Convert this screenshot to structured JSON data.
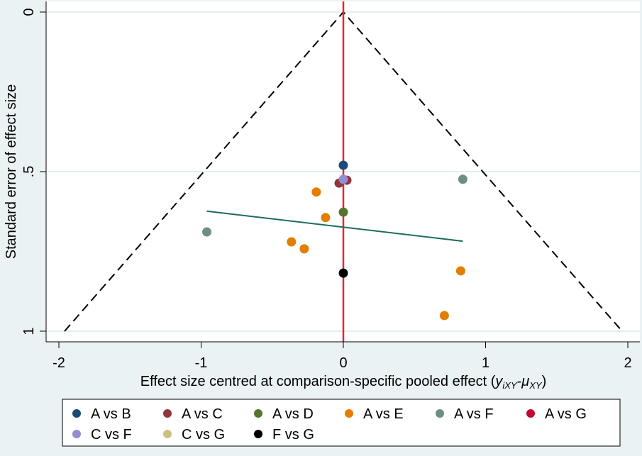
{
  "chart_data": {
    "type": "scatter",
    "title": "",
    "xlabel": "Effect size centred at comparison-specific pooled effect (",
    "xlabel_math": {
      "y": "y",
      "y_sub": "iXY",
      "dash": "-",
      "mu": "μ",
      "mu_sub": "XY",
      "close": ")"
    },
    "ylabel": "Standard error of effect size",
    "xlim": [
      -2,
      2
    ],
    "ylim": [
      0,
      1
    ],
    "y_reversed": true,
    "x_ticks": [
      -2,
      -1,
      0,
      1,
      2
    ],
    "x_tick_labels": [
      "-2",
      "-1",
      "0",
      "1",
      "2"
    ],
    "y_ticks": [
      0,
      0.5,
      1
    ],
    "y_tick_labels": [
      "0",
      ".5",
      "1"
    ],
    "grid": "horizontal",
    "legend_placement": "bottom",
    "funnel": {
      "apex": [
        0,
        0
      ],
      "base_se": 1,
      "slope": 1.96
    },
    "null_line_x": 0,
    "regression_line": {
      "x": [
        -0.96,
        0.84
      ],
      "y": [
        0.624,
        0.718
      ],
      "color": "#1f6b5f"
    },
    "colors": {
      "funnel": "#000000",
      "null_line": "#e8262b"
    },
    "series": [
      {
        "name": "A vs B",
        "color": "#1a4a78",
        "points": [
          [
            0,
            0.48
          ]
        ]
      },
      {
        "name": "A vs C",
        "color": "#90353b",
        "points": [
          [
            -0.03,
            0.536
          ],
          [
            0.025,
            0.527
          ]
        ]
      },
      {
        "name": "A vs D",
        "color": "#55752f",
        "points": [
          [
            0,
            0.627
          ]
        ]
      },
      {
        "name": "A vs E",
        "color": "#e37e00",
        "points": [
          [
            -0.19,
            0.564
          ],
          [
            -0.125,
            0.644
          ],
          [
            -0.365,
            0.72
          ],
          [
            -0.275,
            0.742
          ],
          [
            0.825,
            0.811
          ],
          [
            0.71,
            0.951
          ]
        ]
      },
      {
        "name": "A vs F",
        "color": "#6e8e84",
        "points": [
          [
            0.84,
            0.524
          ],
          [
            -0.96,
            0.689
          ]
        ]
      },
      {
        "name": "A vs G",
        "color": "#c10534",
        "points": []
      },
      {
        "name": "C vs F",
        "color": "#938dd2",
        "points": [
          [
            0,
            0.524
          ]
        ]
      },
      {
        "name": "C vs G",
        "color": "#cac27e",
        "points": []
      },
      {
        "name": "F vs G",
        "color": "#000000",
        "points": [
          [
            0,
            0.818
          ]
        ]
      }
    ]
  }
}
